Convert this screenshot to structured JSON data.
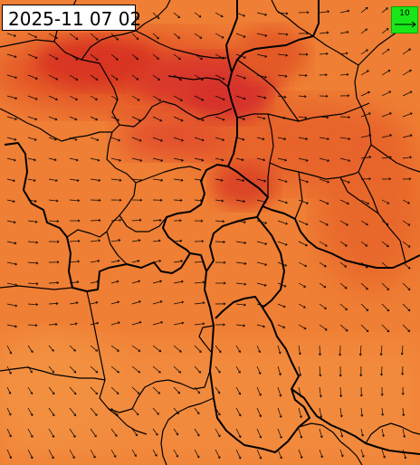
{
  "timestamp": "2025-11 07 02",
  "legend": {
    "value": "10",
    "icon": "wind-reference-arrow-icon",
    "color": "#19e619"
  },
  "map": {
    "variable_colors": {
      "low": "#f08a3a",
      "mid": "#e8642a",
      "high": "#d92f22"
    },
    "border_color": "#000000",
    "arrow_color": "#000000",
    "arrow_icon": "wind-arrow-icon"
  }
}
